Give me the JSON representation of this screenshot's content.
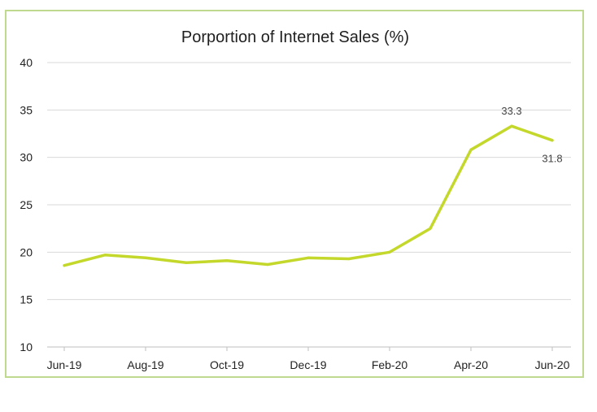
{
  "chart_data": {
    "type": "line",
    "title": "Porportion of Internet Sales (%)",
    "xlabel": "",
    "ylabel": "",
    "x": [
      "Jun-19",
      "Jul-19",
      "Aug-19",
      "Sep-19",
      "Oct-19",
      "Nov-19",
      "Dec-19",
      "Jan-20",
      "Feb-20",
      "Mar-20",
      "Apr-20",
      "May-20",
      "Jun-20"
    ],
    "x_tick_labels": [
      "Jun-19",
      "Aug-19",
      "Oct-19",
      "Dec-19",
      "Feb-20",
      "Apr-20",
      "Jun-20"
    ],
    "y_ticks": [
      10,
      15,
      20,
      25,
      30,
      35,
      40
    ],
    "ylim": [
      10,
      40
    ],
    "grid": true,
    "legend": "none",
    "series": [
      {
        "color": "#c3d82a",
        "values": [
          18.6,
          19.7,
          19.4,
          18.9,
          19.1,
          18.7,
          19.4,
          19.3,
          20.0,
          22.5,
          30.8,
          33.3,
          31.8
        ]
      }
    ],
    "data_labels": [
      {
        "index": 11,
        "text": "33.3"
      },
      {
        "index": 12,
        "text": "31.8"
      }
    ]
  }
}
